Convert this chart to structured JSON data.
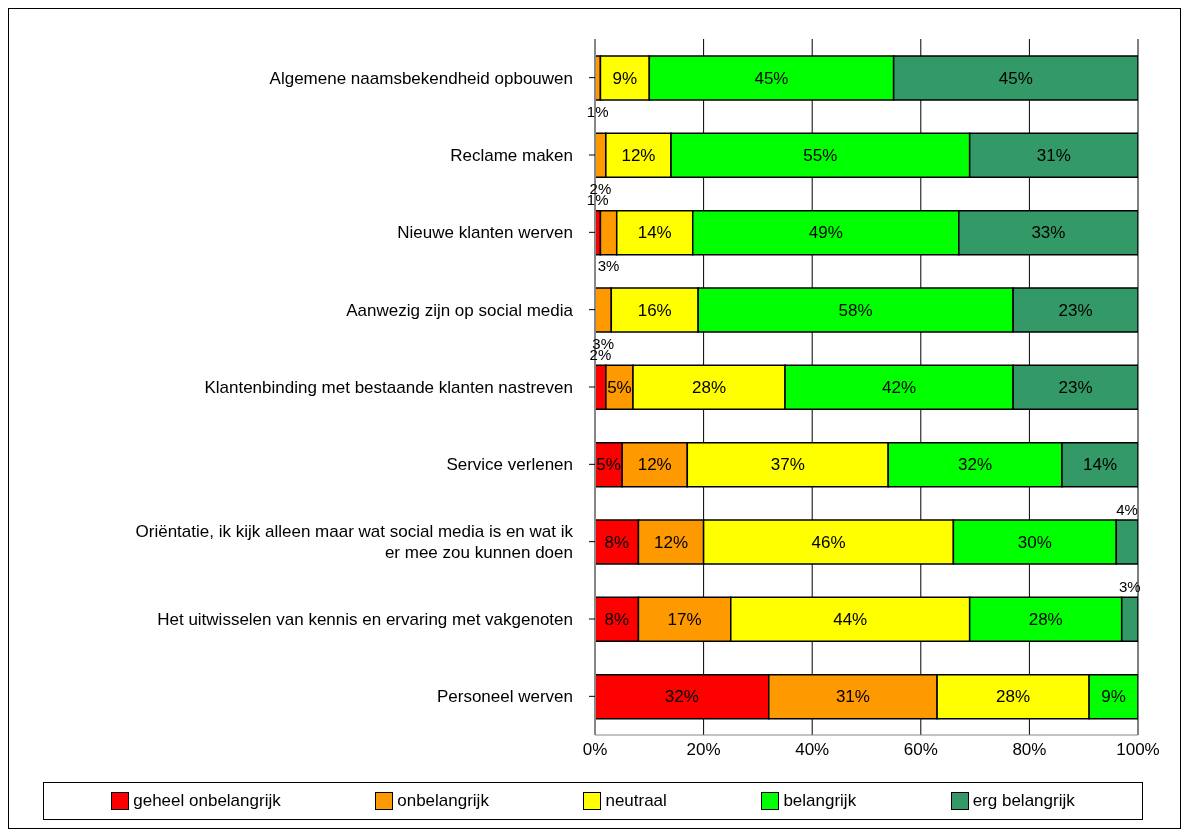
{
  "chart_data": {
    "type": "bar",
    "orientation": "horizontal",
    "stacked": true,
    "categories": [
      "Algemene naamsbekendheid opbouwen",
      "Reclame maken",
      "Nieuwe klanten werven",
      "Aanwezig zijn op social media",
      "Klantenbinding met bestaande klanten nastreven",
      "Service verlenen",
      "Oriëntatie, ik kijk alleen maar wat social media is en wat ik er mee zou kunnen doen",
      "Het uitwisselen van kennis en ervaring met vakgenoten",
      "Personeel werven"
    ],
    "series": [
      {
        "name": "geheel onbelangrijk",
        "color": "#ff0000",
        "values": [
          null,
          null,
          1,
          null,
          2,
          5,
          8,
          8,
          32
        ],
        "value_labels": [
          null,
          null,
          "1%",
          null,
          "2%",
          "5%",
          "8%",
          "8%",
          "32%"
        ]
      },
      {
        "name": "onbelangrijk",
        "color": "#ff9900",
        "values": [
          1,
          2,
          3,
          3,
          5,
          12,
          12,
          17,
          31
        ],
        "value_labels": [
          "1%",
          "2%",
          "3%",
          "3%",
          "5%",
          "12%",
          "12%",
          "17%",
          "31%"
        ]
      },
      {
        "name": "neutraal",
        "color": "#ffff00",
        "values": [
          9,
          12,
          14,
          16,
          28,
          37,
          46,
          44,
          28
        ],
        "value_labels": [
          "9%",
          "12%",
          "14%",
          "16%",
          "28%",
          "37%",
          "46%",
          "44%",
          "28%"
        ]
      },
      {
        "name": "belangrijk",
        "color": "#00ff00",
        "values": [
          45,
          55,
          49,
          58,
          42,
          32,
          30,
          28,
          9
        ],
        "value_labels": [
          "45%",
          "55%",
          "49%",
          "58%",
          "42%",
          "32%",
          "30%",
          "28%",
          "9%"
        ]
      },
      {
        "name": "erg belangrijk",
        "color": "#339966",
        "values": [
          45,
          31,
          33,
          23,
          23,
          14,
          4,
          3,
          null
        ],
        "value_labels": [
          "45%",
          "31%",
          "33%",
          "23%",
          "23%",
          "14%",
          "4%",
          "3%",
          null
        ]
      }
    ],
    "xlim": [
      0,
      100
    ],
    "xticks": [
      {
        "value": 0,
        "label": "0%"
      },
      {
        "value": 20,
        "label": "20%"
      },
      {
        "value": 40,
        "label": "40%"
      },
      {
        "value": 60,
        "label": "60%"
      },
      {
        "value": 80,
        "label": "80%"
      },
      {
        "value": 100,
        "label": "100%"
      }
    ],
    "grid": "x",
    "legend": "bottom"
  }
}
